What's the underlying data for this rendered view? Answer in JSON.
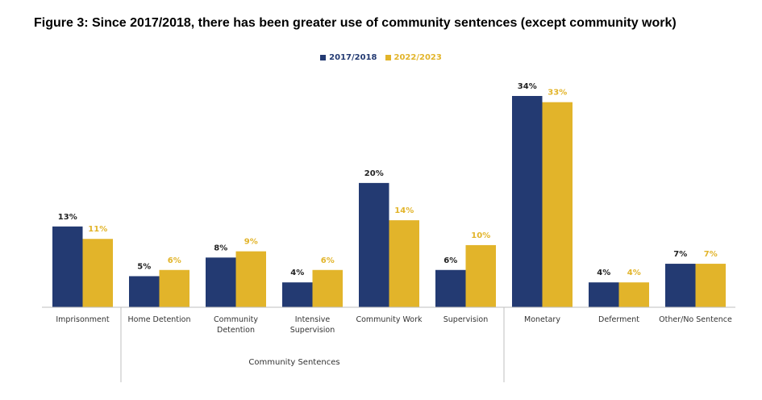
{
  "title": "Figure 3:   Since 2017/2018, there has been greater use of community sentences (except community work)",
  "group_label": "Community Sentences",
  "colors": {
    "series1": "#233a72",
    "series2": "#e2b42a"
  },
  "chart_data": {
    "type": "bar",
    "categories": [
      "Imprisonment",
      "Home Detention",
      "Community\nDetention",
      "Intensive\nSupervision",
      "Community Work",
      "Supervision",
      "Monetary",
      "Deferment",
      "Other/No Sentence"
    ],
    "series": [
      {
        "name": "2017/2018",
        "values": [
          13,
          5,
          8,
          4,
          20,
          6,
          34,
          4,
          7
        ],
        "labels": [
          "13%",
          "5%",
          "8%",
          "4%",
          "20%",
          "6%",
          "34%",
          "4%",
          "7%"
        ]
      },
      {
        "name": "2022/2023",
        "values": [
          11,
          6,
          9,
          6,
          14,
          10,
          33,
          4,
          7
        ],
        "labels": [
          "11%",
          "6%",
          "9%",
          "6%",
          "14%",
          "10%",
          "33%",
          "4%",
          "7%"
        ]
      }
    ],
    "ylim": [
      0,
      35
    ],
    "grid": false,
    "legend": "top-center"
  }
}
